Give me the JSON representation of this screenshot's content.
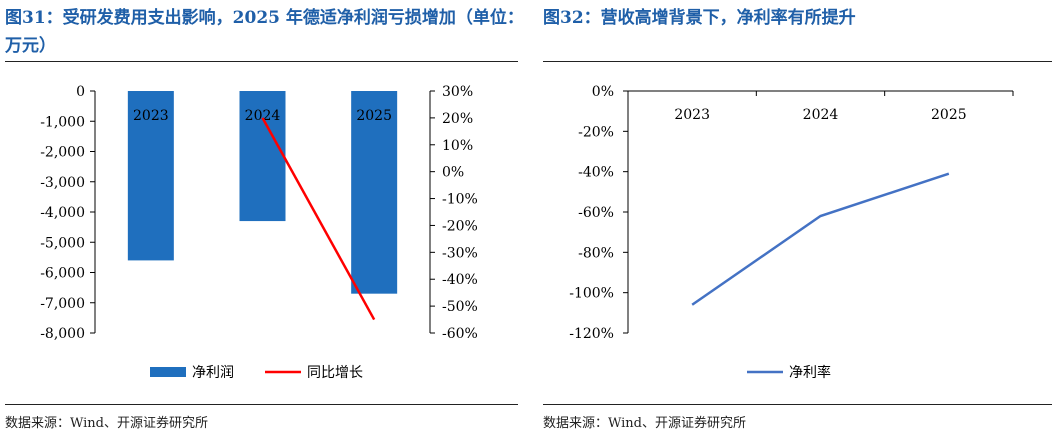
{
  "left": {
    "title": "图31：受研发费用支出影响，2025 年德适净利润亏损增加（单位：万元）",
    "source": "数据来源：Wind、开源证券研究所",
    "chart_data": {
      "type": "bar",
      "categories": [
        "2023",
        "2024",
        "2025"
      ],
      "series": [
        {
          "name": "净利润",
          "axis": "left",
          "type": "bar",
          "color": "#1f6fbe",
          "values": [
            -5600,
            -4300,
            -6700
          ]
        },
        {
          "name": "同比增长",
          "axis": "right",
          "type": "line",
          "color": "#ff0000",
          "values": [
            null,
            0.2,
            -0.55
          ]
        }
      ],
      "ylim_left": [
        -8000,
        0
      ],
      "yticks_left": [
        "0",
        "-1,000",
        "-2,000",
        "-3,000",
        "-4,000",
        "-5,000",
        "-6,000",
        "-7,000",
        "-8,000"
      ],
      "ylim_right": [
        -0.6,
        0.3
      ],
      "yticks_right": [
        "30%",
        "20%",
        "10%",
        "0%",
        "-10%",
        "-20%",
        "-30%",
        "-40%",
        "-50%",
        "-60%"
      ],
      "legend_position": "bottom"
    }
  },
  "right": {
    "title": "图32：营收高增背景下，净利率有所提升",
    "source": "数据来源：Wind、开源证券研究所",
    "chart_data": {
      "type": "line",
      "categories": [
        "2023",
        "2024",
        "2025"
      ],
      "series": [
        {
          "name": "净利率",
          "color": "#4472c4",
          "values": [
            -1.06,
            -0.62,
            -0.41
          ]
        }
      ],
      "ylim": [
        -1.2,
        0
      ],
      "yticks": [
        "0%",
        "-20%",
        "-40%",
        "-60%",
        "-80%",
        "-100%",
        "-120%"
      ],
      "legend_position": "bottom"
    }
  }
}
